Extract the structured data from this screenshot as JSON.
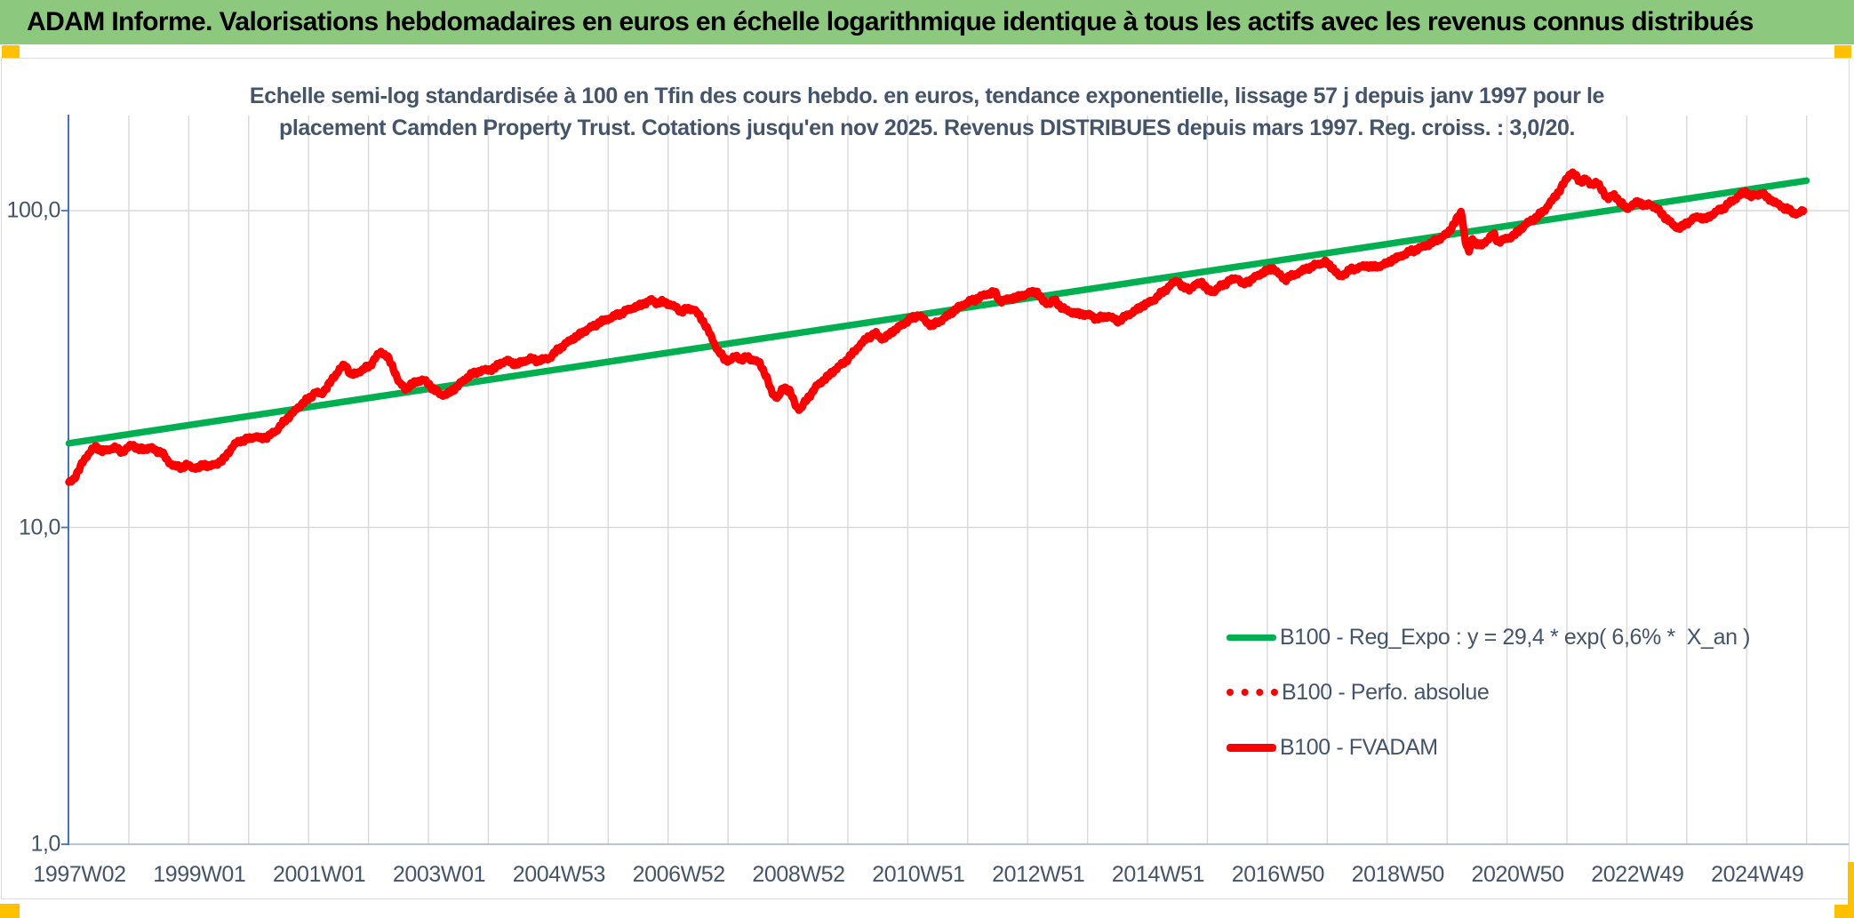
{
  "banner": {
    "title": "ADAM Informe. Valorisations hebdomadaires en euros en échelle logarithmique identique à tous les actifs avec les revenus connus distribués",
    "bg_color": "#8CC87D",
    "corner_accent_color": "#FFC000"
  },
  "chart_data": {
    "type": "line",
    "title_lines": [
      "Echelle semi-log standardisée à 100 en Tfin des cours hebdo. en euros, tendance exponentielle, lissage 57 j depuis janv 1997 pour le",
      "placement Camden Property Trust. Cotations jusqu'en nov 2025. Revenus DISTRIBUES depuis mars 1997. Reg. croiss. : 3,0/20."
    ],
    "x_tick_labels": [
      "1997W02",
      "1999W01",
      "2001W01",
      "2003W01",
      "2004W53",
      "2006W52",
      "2008W52",
      "2010W51",
      "2012W51",
      "2014W51",
      "2016W50",
      "2018W50",
      "2020W50",
      "2022W49",
      "2024W49"
    ],
    "y_tick_labels": [
      "100,0",
      "10,0",
      "1,0"
    ],
    "y_tick_values": [
      100,
      10,
      1
    ],
    "y_scale": "log10",
    "y_range": [
      1,
      200
    ],
    "x_range_years": [
      1997.0,
      2025.92
    ],
    "grid": true,
    "legend_position": "inside-right-bottom",
    "colors": {
      "gridline": "#D9D9D9",
      "y_axis": "#4472C4",
      "x_axis": "#ABBBD9",
      "text": "#44546A"
    },
    "series": [
      {
        "name": "B100 - Reg_Expo : y = 29,4 * exp( 6,6% *  X_an )",
        "color": "#00B050",
        "style": "solid",
        "formula": {
          "a": 29.4,
          "annual_rate_pct": 6.6,
          "x0_year": 2004.07
        },
        "points": [
          [
            1997.0,
            18.4
          ],
          [
            2025.92,
            124.3
          ]
        ]
      },
      {
        "name": "B100 - Perfo. absolue",
        "color": "#FF0000",
        "style": "dotted",
        "note": "coincides with B100 - FVADAM curve (hidden beneath it)"
      },
      {
        "name": "B100 - FVADAM",
        "color": "#FF0000",
        "style": "solid",
        "end_value_standardized": 100,
        "points": [
          [
            1997.0,
            13.8
          ],
          [
            1997.08,
            14.2
          ],
          [
            1997.15,
            15.0
          ],
          [
            1997.25,
            16.3
          ],
          [
            1997.35,
            17.3
          ],
          [
            1997.45,
            18.0
          ],
          [
            1997.55,
            17.4
          ],
          [
            1997.65,
            17.6
          ],
          [
            1997.75,
            17.9
          ],
          [
            1997.85,
            17.4
          ],
          [
            1997.95,
            17.6
          ],
          [
            1998.05,
            18.3
          ],
          [
            1998.15,
            17.7
          ],
          [
            1998.25,
            17.6
          ],
          [
            1998.35,
            17.9
          ],
          [
            1998.45,
            17.5
          ],
          [
            1998.55,
            17.2
          ],
          [
            1998.65,
            16.2
          ],
          [
            1998.75,
            15.6
          ],
          [
            1998.85,
            15.5
          ],
          [
            1998.95,
            15.7
          ],
          [
            1999.05,
            15.5
          ],
          [
            1999.15,
            15.4
          ],
          [
            1999.25,
            15.8
          ],
          [
            1999.35,
            15.6
          ],
          [
            1999.45,
            15.9
          ],
          [
            1999.55,
            16.2
          ],
          [
            1999.65,
            17.2
          ],
          [
            1999.75,
            18.2
          ],
          [
            1999.85,
            18.8
          ],
          [
            1999.95,
            18.9
          ],
          [
            2000.1,
            19.4
          ],
          [
            2000.2,
            19.1
          ],
          [
            2000.3,
            19.3
          ],
          [
            2000.45,
            20.2
          ],
          [
            2000.6,
            21.8
          ],
          [
            2000.75,
            23.2
          ],
          [
            2000.9,
            24.8
          ],
          [
            2001.0,
            25.5
          ],
          [
            2001.1,
            26.8
          ],
          [
            2001.2,
            26.3
          ],
          [
            2001.3,
            27.8
          ],
          [
            2001.4,
            29.6
          ],
          [
            2001.5,
            31.5
          ],
          [
            2001.6,
            32.7
          ],
          [
            2001.7,
            30.2
          ],
          [
            2001.8,
            30.8
          ],
          [
            2001.9,
            31.6
          ],
          [
            2002.0,
            32.2
          ],
          [
            2002.1,
            34.3
          ],
          [
            2002.2,
            35.8
          ],
          [
            2002.3,
            34.6
          ],
          [
            2002.4,
            31.8
          ],
          [
            2002.5,
            28.6
          ],
          [
            2002.6,
            27.4
          ],
          [
            2002.7,
            28.2
          ],
          [
            2002.8,
            29.0
          ],
          [
            2002.9,
            29.2
          ],
          [
            2003.0,
            28.2
          ],
          [
            2003.1,
            27.0
          ],
          [
            2003.2,
            26.2
          ],
          [
            2003.3,
            26.4
          ],
          [
            2003.4,
            27.2
          ],
          [
            2003.5,
            28.3
          ],
          [
            2003.6,
            29.5
          ],
          [
            2003.7,
            30.4
          ],
          [
            2003.8,
            31.0
          ],
          [
            2003.9,
            31.3
          ],
          [
            2004.0,
            31.5
          ],
          [
            2004.1,
            31.9
          ],
          [
            2004.2,
            33.2
          ],
          [
            2004.3,
            33.6
          ],
          [
            2004.4,
            32.9
          ],
          [
            2004.5,
            33.0
          ],
          [
            2004.6,
            33.6
          ],
          [
            2004.7,
            34.1
          ],
          [
            2004.8,
            33.6
          ],
          [
            2004.9,
            33.9
          ],
          [
            2005.0,
            34.3
          ],
          [
            2005.1,
            35.8
          ],
          [
            2005.2,
            37.2
          ],
          [
            2005.35,
            39.0
          ],
          [
            2005.5,
            40.6
          ],
          [
            2005.65,
            42.4
          ],
          [
            2005.8,
            44.0
          ],
          [
            2005.95,
            45.4
          ],
          [
            2006.1,
            46.6
          ],
          [
            2006.25,
            48.0
          ],
          [
            2006.4,
            49.4
          ],
          [
            2006.55,
            50.6
          ],
          [
            2006.7,
            52.3
          ],
          [
            2006.8,
            51.0
          ],
          [
            2006.9,
            51.6
          ],
          [
            2007.0,
            50.6
          ],
          [
            2007.1,
            49.4
          ],
          [
            2007.2,
            48.2
          ],
          [
            2007.3,
            48.8
          ],
          [
            2007.4,
            49.0
          ],
          [
            2007.5,
            46.4
          ],
          [
            2007.6,
            43.4
          ],
          [
            2007.7,
            39.6
          ],
          [
            2007.8,
            36.2
          ],
          [
            2007.9,
            34.2
          ],
          [
            2008.0,
            33.6
          ],
          [
            2008.1,
            34.8
          ],
          [
            2008.2,
            33.9
          ],
          [
            2008.3,
            34.4
          ],
          [
            2008.4,
            33.8
          ],
          [
            2008.5,
            33.0
          ],
          [
            2008.6,
            30.2
          ],
          [
            2008.7,
            26.6
          ],
          [
            2008.8,
            25.6
          ],
          [
            2008.9,
            27.8
          ],
          [
            2009.0,
            26.9
          ],
          [
            2009.1,
            24.1
          ],
          [
            2009.17,
            23.6
          ],
          [
            2009.3,
            25.6
          ],
          [
            2009.45,
            28.0
          ],
          [
            2009.6,
            29.6
          ],
          [
            2009.75,
            31.4
          ],
          [
            2009.9,
            33.2
          ],
          [
            2010.0,
            34.6
          ],
          [
            2010.15,
            37.4
          ],
          [
            2010.3,
            39.8
          ],
          [
            2010.42,
            41.0
          ],
          [
            2010.55,
            39.2
          ],
          [
            2010.7,
            41.4
          ],
          [
            2010.85,
            43.4
          ],
          [
            2011.0,
            45.4
          ],
          [
            2011.15,
            46.9
          ],
          [
            2011.3,
            44.0
          ],
          [
            2011.4,
            43.6
          ],
          [
            2011.5,
            44.8
          ],
          [
            2011.65,
            47.0
          ],
          [
            2011.8,
            49.4
          ],
          [
            2011.95,
            51.2
          ],
          [
            2012.1,
            52.6
          ],
          [
            2012.25,
            54.2
          ],
          [
            2012.4,
            55.5
          ],
          [
            2012.5,
            51.8
          ],
          [
            2012.65,
            52.6
          ],
          [
            2012.8,
            53.4
          ],
          [
            2012.95,
            54.6
          ],
          [
            2013.1,
            55.8
          ],
          [
            2013.2,
            52.0
          ],
          [
            2013.3,
            50.8
          ],
          [
            2013.4,
            52.2
          ],
          [
            2013.5,
            50.0
          ],
          [
            2013.6,
            48.4
          ],
          [
            2013.75,
            47.4
          ],
          [
            2013.9,
            47.0
          ],
          [
            2014.0,
            46.8
          ],
          [
            2014.1,
            45.6
          ],
          [
            2014.2,
            46.0
          ],
          [
            2014.3,
            46.6
          ],
          [
            2014.45,
            44.8
          ],
          [
            2014.6,
            46.4
          ],
          [
            2014.75,
            48.4
          ],
          [
            2014.9,
            50.4
          ],
          [
            2015.05,
            52.2
          ],
          [
            2015.2,
            55.2
          ],
          [
            2015.35,
            58.4
          ],
          [
            2015.45,
            60.3
          ],
          [
            2015.55,
            57.0
          ],
          [
            2015.65,
            56.6
          ],
          [
            2015.75,
            58.2
          ],
          [
            2015.85,
            59.6
          ],
          [
            2015.95,
            56.2
          ],
          [
            2016.05,
            55.4
          ],
          [
            2016.15,
            57.4
          ],
          [
            2016.3,
            59.8
          ],
          [
            2016.45,
            61.4
          ],
          [
            2016.55,
            58.4
          ],
          [
            2016.65,
            60.2
          ],
          [
            2016.8,
            62.6
          ],
          [
            2016.95,
            64.8
          ],
          [
            2017.05,
            65.7
          ],
          [
            2017.15,
            62.6
          ],
          [
            2017.25,
            60.8
          ],
          [
            2017.35,
            62.2
          ],
          [
            2017.5,
            64.2
          ],
          [
            2017.65,
            66.2
          ],
          [
            2017.8,
            67.8
          ],
          [
            2017.92,
            68.8
          ],
          [
            2018.05,
            65.4
          ],
          [
            2018.15,
            61.8
          ],
          [
            2018.25,
            63.6
          ],
          [
            2018.35,
            65.2
          ],
          [
            2018.5,
            66.4
          ],
          [
            2018.65,
            67.0
          ],
          [
            2018.75,
            66.2
          ],
          [
            2018.9,
            67.8
          ],
          [
            2019.05,
            70.2
          ],
          [
            2019.2,
            72.4
          ],
          [
            2019.35,
            74.6
          ],
          [
            2019.5,
            76.2
          ],
          [
            2019.65,
            78.6
          ],
          [
            2019.8,
            81.2
          ],
          [
            2019.95,
            85.0
          ],
          [
            2020.05,
            90.5
          ],
          [
            2020.13,
            96.0
          ],
          [
            2020.18,
            99.5
          ],
          [
            2020.24,
            80.0
          ],
          [
            2020.3,
            73.5
          ],
          [
            2020.36,
            81.5
          ],
          [
            2020.42,
            79.0
          ],
          [
            2020.5,
            77.2
          ],
          [
            2020.58,
            80.0
          ],
          [
            2020.65,
            82.5
          ],
          [
            2020.72,
            84.0
          ],
          [
            2020.78,
            79.8
          ],
          [
            2020.85,
            80.6
          ],
          [
            2020.95,
            81.8
          ],
          [
            2021.05,
            83.5
          ],
          [
            2021.15,
            87.0
          ],
          [
            2021.25,
            90.5
          ],
          [
            2021.35,
            93.5
          ],
          [
            2021.45,
            96.0
          ],
          [
            2021.55,
            100.0
          ],
          [
            2021.65,
            105.5
          ],
          [
            2021.75,
            111.5
          ],
          [
            2021.85,
            119.0
          ],
          [
            2021.95,
            128.0
          ],
          [
            2022.0,
            132.5
          ],
          [
            2022.08,
            128.5
          ],
          [
            2022.16,
            123.0
          ],
          [
            2022.24,
            126.0
          ],
          [
            2022.32,
            121.0
          ],
          [
            2022.42,
            122.8
          ],
          [
            2022.52,
            116.0
          ],
          [
            2022.62,
            109.0
          ],
          [
            2022.72,
            112.0
          ],
          [
            2022.82,
            106.5
          ],
          [
            2022.92,
            101.5
          ],
          [
            2023.02,
            104.0
          ],
          [
            2023.12,
            107.0
          ],
          [
            2023.22,
            103.5
          ],
          [
            2023.32,
            105.0
          ],
          [
            2023.42,
            101.5
          ],
          [
            2023.52,
            97.5
          ],
          [
            2023.62,
            93.0
          ],
          [
            2023.72,
            89.5
          ],
          [
            2023.82,
            88.2
          ],
          [
            2023.92,
            91.0
          ],
          [
            2024.02,
            94.0
          ],
          [
            2024.12,
            96.0
          ],
          [
            2024.22,
            93.8
          ],
          [
            2024.32,
            96.2
          ],
          [
            2024.42,
            99.2
          ],
          [
            2024.52,
            101.5
          ],
          [
            2024.62,
            104.8
          ],
          [
            2024.72,
            108.5
          ],
          [
            2024.82,
            112.5
          ],
          [
            2024.92,
            114.5
          ],
          [
            2025.0,
            111.0
          ],
          [
            2025.1,
            112.0
          ],
          [
            2025.18,
            113.5
          ],
          [
            2025.28,
            109.5
          ],
          [
            2025.38,
            106.5
          ],
          [
            2025.48,
            103.8
          ],
          [
            2025.58,
            101.5
          ],
          [
            2025.68,
            99.0
          ],
          [
            2025.78,
            97.8
          ],
          [
            2025.87,
            100.0
          ]
        ]
      }
    ]
  }
}
